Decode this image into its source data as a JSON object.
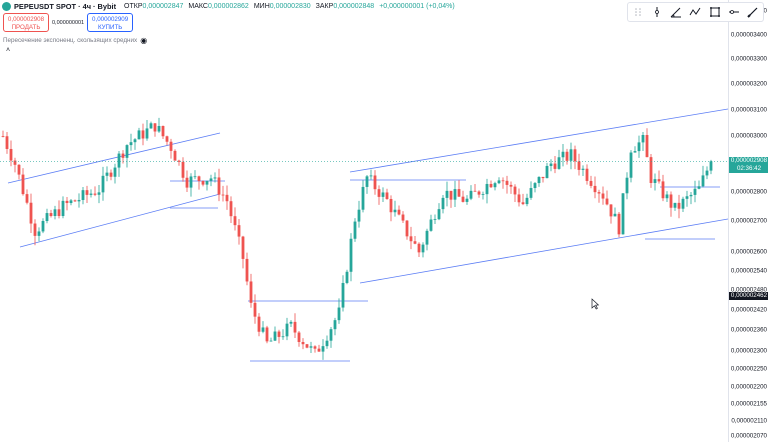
{
  "header": {
    "symbol": "PEPEUSDT SPOT · 4ч · Bybit",
    "open_label": "ОТКР",
    "open_value": "0,000002847",
    "high_label": "МАКС",
    "high_value": "0,000002862",
    "low_label": "МИН",
    "low_value": "0,000002830",
    "close_label": "ЗАКР",
    "close_value": "0,000002848",
    "change": "+0,000000001 (+0,04%)"
  },
  "trade": {
    "sell_price": "0,000002908",
    "sell_label": "ПРОДАТЬ",
    "spread": "0,000000001",
    "buy_price": "0,000002909",
    "buy_label": "КУПИТЬ"
  },
  "indicator": {
    "label": "Пересечение экспоненц. скользящих средних"
  },
  "toolbar": {
    "icons": [
      "drag-handle-icon",
      "vertical-line-icon",
      "trend-angle-icon",
      "polyline-icon",
      "rectangle-icon",
      "horizontal-ray-icon",
      "brush-icon"
    ]
  },
  "price_axis": {
    "ticks": [
      "0,000003500",
      "0,000003400",
      "0,000003300",
      "0,000003200",
      "0,000003100",
      "0,000003000",
      "0,000002900",
      "0,000002800",
      "0,000002700",
      "0,000002600",
      "0,000002540",
      "0,000002480",
      "0,000002420",
      "0,000002360",
      "0,000002300",
      "0,000002250",
      "0,000002200",
      "0,000002155",
      "0,000002110",
      "0,000002070"
    ],
    "last_price": "0,000002908",
    "countdown": "02:36:42",
    "cursor_price": "0,000002462"
  },
  "colors": {
    "up": "#26a69a",
    "down": "#ef5350",
    "drawing": "#5b7df5",
    "buy": "#2962ff"
  },
  "chart_data": {
    "type": "candlestick",
    "title": "PEPEUSDT SPOT · 4ч · Bybit",
    "y_scale": "log",
    "ylim": [
      2.055e-06,
      3.55e-06
    ],
    "candle_count": 178,
    "close_path": [
      [
        0,
        3e-06
      ],
      [
        3,
        2.9e-06
      ],
      [
        8,
        2.67e-06
      ],
      [
        15,
        2.75e-06
      ],
      [
        24,
        2.81e-06
      ],
      [
        31,
        2.97e-06
      ],
      [
        38,
        3.04e-06
      ],
      [
        42,
        2.96e-06
      ],
      [
        46,
        2.84e-06
      ],
      [
        52,
        2.85e-06
      ],
      [
        56,
        2.77e-06
      ],
      [
        60,
        2.58e-06
      ],
      [
        62,
        2.43e-06
      ],
      [
        66,
        2.32e-06
      ],
      [
        72,
        2.37e-06
      ],
      [
        78,
        2.29e-06
      ],
      [
        84,
        2.41e-06
      ],
      [
        88,
        2.71e-06
      ],
      [
        91,
        2.85e-06
      ],
      [
        96,
        2.77e-06
      ],
      [
        104,
        2.6e-06
      ],
      [
        110,
        2.8e-06
      ],
      [
        116,
        2.77e-06
      ],
      [
        124,
        2.86e-06
      ],
      [
        130,
        2.76e-06
      ],
      [
        137,
        2.9e-06
      ],
      [
        142,
        2.93e-06
      ],
      [
        150,
        2.79e-06
      ],
      [
        154,
        2.68e-06
      ],
      [
        157,
        2.96e-06
      ],
      [
        160,
        2.98e-06
      ],
      [
        162,
        2.85e-06
      ],
      [
        168,
        2.74e-06
      ],
      [
        174,
        2.81e-06
      ],
      [
        177,
        2.91e-06
      ]
    ],
    "last_close": 2.908e-06
  }
}
